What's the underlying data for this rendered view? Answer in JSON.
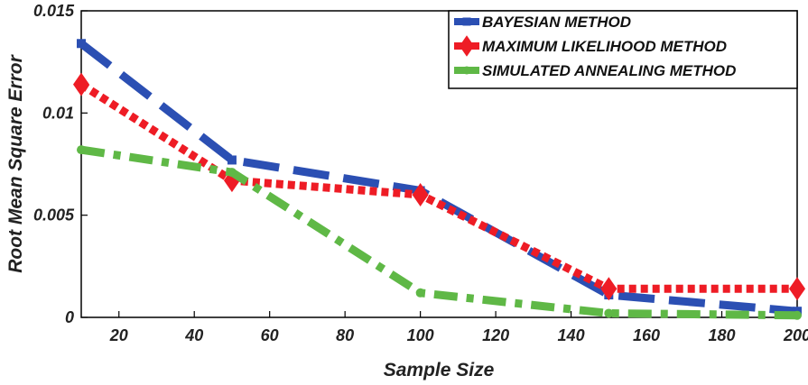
{
  "chart_data": {
    "type": "line",
    "title": "",
    "xlabel": "Sample Size",
    "ylabel": "Root Mean Square Error",
    "xlim": [
      10,
      200
    ],
    "ylim": [
      0,
      0.015
    ],
    "x_ticks": [
      20,
      40,
      60,
      80,
      100,
      120,
      140,
      160,
      180,
      200
    ],
    "x_tick_labels": [
      "20",
      "40",
      "60",
      "80",
      "100",
      "120",
      "140",
      "160",
      "180",
      "200"
    ],
    "y_ticks": [
      0,
      0.005,
      0.01,
      0.015
    ],
    "y_tick_labels": [
      "0",
      "0.005",
      "0.01",
      "0.015"
    ],
    "grid": false,
    "legend_position": "top-right",
    "series": [
      {
        "name": "BAYESIAN METHOD",
        "color": "#2b4fb3",
        "line_style": "long-dash",
        "marker": "square",
        "x": [
          10,
          50,
          100,
          150,
          200
        ],
        "values": [
          0.0134,
          0.0077,
          0.0062,
          0.0011,
          0.0003
        ]
      },
      {
        "name": "MAXIMUM LIKELIHOOD METHOD",
        "color": "#ee1c25",
        "line_style": "dotted",
        "marker": "diamond",
        "x": [
          10,
          50,
          100,
          150,
          200
        ],
        "values": [
          0.0114,
          0.0067,
          0.006,
          0.0014,
          0.0014
        ]
      },
      {
        "name": "SIMULATED ANNEALING METHOD",
        "color": "#5fb846",
        "line_style": "dash-dot",
        "marker": "dot",
        "x": [
          10,
          50,
          100,
          150,
          200
        ],
        "values": [
          0.0082,
          0.0071,
          0.0012,
          0.0002,
          0.0001
        ]
      }
    ]
  }
}
